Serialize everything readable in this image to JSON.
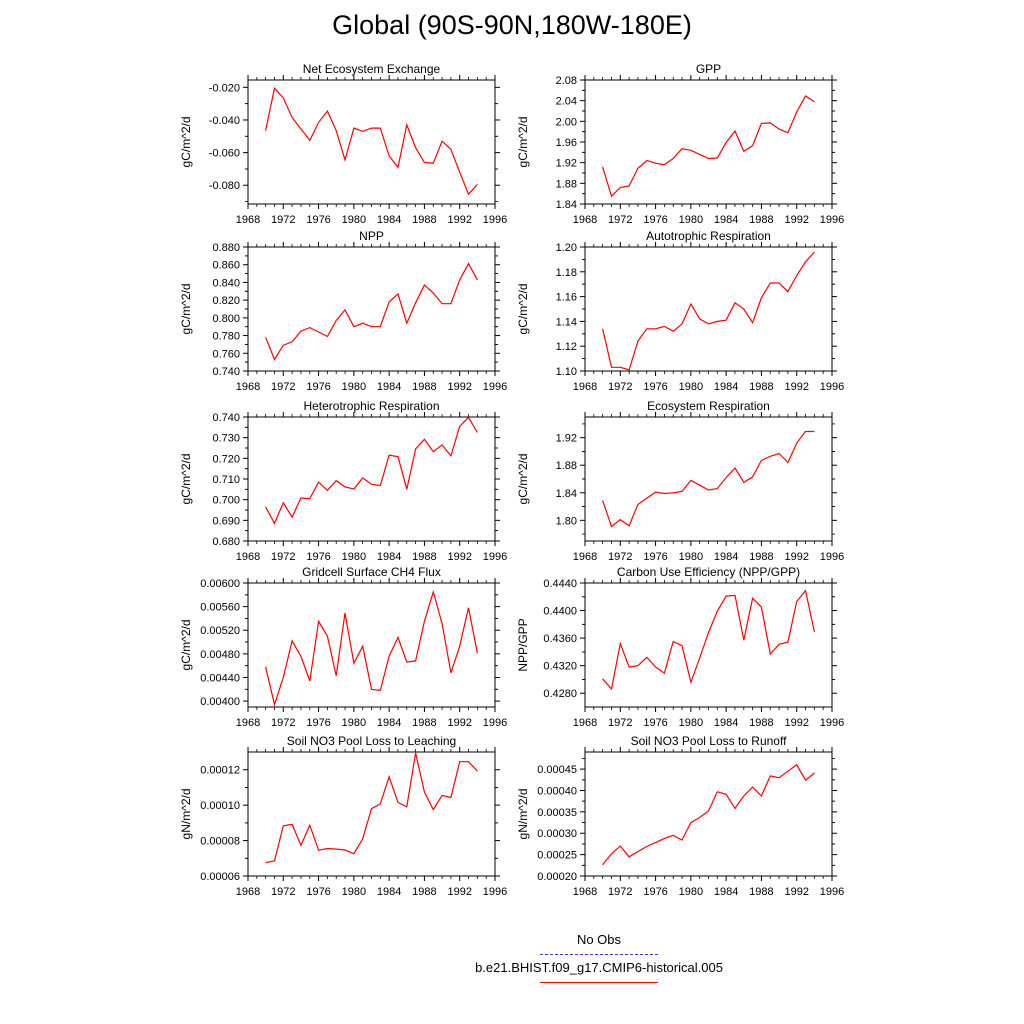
{
  "title": "Global (90S-90N,180W-180E)",
  "colors": {
    "model": "#ff0000",
    "obs": "#3b3bcf",
    "axis": "#000000"
  },
  "legend": {
    "obs_label": "No Obs",
    "model_label": "b.e21.BHIST.f09_g17.CMIP6-historical.005"
  },
  "chart_data": [
    {
      "type": "line",
      "title": "Net Ecosystem Exchange",
      "ylabel": "gC/m^2/d",
      "xlim": [
        1968,
        1996
      ],
      "xticks": [
        "1968",
        "1972",
        "1976",
        "1980",
        "1984",
        "1988",
        "1992",
        "1996"
      ],
      "ylim": [
        -0.0915,
        -0.0155
      ],
      "yticks": [
        {
          "v": -0.02,
          "label": "-0.020"
        },
        {
          "v": -0.04,
          "label": "-0.040"
        },
        {
          "v": -0.06,
          "label": "-0.060"
        },
        {
          "v": -0.08,
          "label": "-0.080"
        }
      ],
      "x": [
        1970,
        1971,
        1972,
        1973,
        1974,
        1975,
        1976,
        1977,
        1978,
        1979,
        1980,
        1981,
        1982,
        1983,
        1984,
        1985,
        1986,
        1987,
        1988,
        1989,
        1990,
        1991,
        1992,
        1993,
        1994
      ],
      "values": [
        -0.0465,
        -0.0205,
        -0.0265,
        -0.0385,
        -0.0455,
        -0.0525,
        -0.0415,
        -0.0345,
        -0.0465,
        -0.0645,
        -0.045,
        -0.047,
        -0.045,
        -0.045,
        -0.062,
        -0.069,
        -0.043,
        -0.057,
        -0.066,
        -0.0665,
        -0.053,
        -0.058,
        -0.072,
        -0.0855,
        -0.0795
      ]
    },
    {
      "type": "line",
      "title": "GPP",
      "ylabel": "gC/m^2/d",
      "xlim": [
        1968,
        1996
      ],
      "xticks": [
        "1968",
        "1972",
        "1976",
        "1980",
        "1984",
        "1988",
        "1992",
        "1996"
      ],
      "ylim": [
        1.84,
        2.08
      ],
      "yticks": [
        {
          "v": 1.84,
          "label": "1.84"
        },
        {
          "v": 1.88,
          "label": "1.88"
        },
        {
          "v": 1.92,
          "label": "1.92"
        },
        {
          "v": 1.96,
          "label": "1.96"
        },
        {
          "v": 2.0,
          "label": "2.00"
        },
        {
          "v": 2.04,
          "label": "2.04"
        },
        {
          "v": 2.08,
          "label": "2.08"
        }
      ],
      "x": [
        1970,
        1971,
        1972,
        1973,
        1974,
        1975,
        1976,
        1977,
        1978,
        1979,
        1980,
        1981,
        1982,
        1983,
        1984,
        1985,
        1986,
        1987,
        1988,
        1989,
        1990,
        1991,
        1992,
        1993,
        1994
      ],
      "values": [
        1.912,
        1.855,
        1.872,
        1.875,
        1.909,
        1.924,
        1.919,
        1.916,
        1.928,
        1.947,
        1.944,
        1.936,
        1.928,
        1.929,
        1.959,
        1.981,
        1.942,
        1.953,
        1.996,
        1.997,
        1.985,
        1.978,
        2.018,
        2.049,
        2.038
      ]
    },
    {
      "type": "line",
      "title": "NPP",
      "ylabel": "gC/m^2/d",
      "xlim": [
        1968,
        1996
      ],
      "xticks": [
        "1968",
        "1972",
        "1976",
        "1980",
        "1984",
        "1988",
        "1992",
        "1996"
      ],
      "ylim": [
        0.74,
        0.88
      ],
      "yticks": [
        {
          "v": 0.74,
          "label": "0.740"
        },
        {
          "v": 0.76,
          "label": "0.760"
        },
        {
          "v": 0.78,
          "label": "0.780"
        },
        {
          "v": 0.8,
          "label": "0.800"
        },
        {
          "v": 0.82,
          "label": "0.820"
        },
        {
          "v": 0.84,
          "label": "0.840"
        },
        {
          "v": 0.86,
          "label": "0.860"
        },
        {
          "v": 0.88,
          "label": "0.880"
        }
      ],
      "x": [
        1970,
        1971,
        1972,
        1973,
        1974,
        1975,
        1976,
        1977,
        1978,
        1979,
        1980,
        1981,
        1982,
        1983,
        1984,
        1985,
        1986,
        1987,
        1988,
        1989,
        1990,
        1991,
        1992,
        1993,
        1994
      ],
      "values": [
        0.778,
        0.753,
        0.769,
        0.773,
        0.785,
        0.789,
        0.784,
        0.779,
        0.797,
        0.809,
        0.79,
        0.794,
        0.79,
        0.79,
        0.818,
        0.827,
        0.794,
        0.817,
        0.837,
        0.828,
        0.816,
        0.816,
        0.843,
        0.861,
        0.843
      ]
    },
    {
      "type": "line",
      "title": "Autotrophic Respiration",
      "ylabel": "gC/m^2/d",
      "xlim": [
        1968,
        1996
      ],
      "xticks": [
        "1968",
        "1972",
        "1976",
        "1980",
        "1984",
        "1988",
        "1992",
        "1996"
      ],
      "ylim": [
        1.1,
        1.2
      ],
      "yticks": [
        {
          "v": 1.1,
          "label": "1.10"
        },
        {
          "v": 1.12,
          "label": "1.12"
        },
        {
          "v": 1.14,
          "label": "1.14"
        },
        {
          "v": 1.16,
          "label": "1.16"
        },
        {
          "v": 1.18,
          "label": "1.18"
        },
        {
          "v": 1.2,
          "label": "1.20"
        }
      ],
      "x": [
        1970,
        1971,
        1972,
        1973,
        1974,
        1975,
        1976,
        1977,
        1978,
        1979,
        1980,
        1981,
        1982,
        1983,
        1984,
        1985,
        1986,
        1987,
        1988,
        1989,
        1990,
        1991,
        1992,
        1993,
        1994
      ],
      "values": [
        1.134,
        1.103,
        1.103,
        1.101,
        1.124,
        1.134,
        1.134,
        1.136,
        1.132,
        1.138,
        1.154,
        1.142,
        1.138,
        1.14,
        1.141,
        1.155,
        1.15,
        1.139,
        1.159,
        1.171,
        1.171,
        1.164,
        1.177,
        1.188,
        1.196
      ]
    },
    {
      "type": "line",
      "title": "Heterotrophic Respiration",
      "ylabel": "gC/m^2/d",
      "xlim": [
        1968,
        1996
      ],
      "xticks": [
        "1968",
        "1972",
        "1976",
        "1980",
        "1984",
        "1988",
        "1992",
        "1996"
      ],
      "ylim": [
        0.68,
        0.74
      ],
      "yticks": [
        {
          "v": 0.68,
          "label": "0.680"
        },
        {
          "v": 0.69,
          "label": "0.690"
        },
        {
          "v": 0.7,
          "label": "0.700"
        },
        {
          "v": 0.71,
          "label": "0.710"
        },
        {
          "v": 0.72,
          "label": "0.720"
        },
        {
          "v": 0.73,
          "label": "0.730"
        },
        {
          "v": 0.74,
          "label": "0.740"
        }
      ],
      "x": [
        1970,
        1971,
        1972,
        1973,
        1974,
        1975,
        1976,
        1977,
        1978,
        1979,
        1980,
        1981,
        1982,
        1983,
        1984,
        1985,
        1986,
        1987,
        1988,
        1989,
        1990,
        1991,
        1992,
        1993,
        1994
      ],
      "values": [
        0.6965,
        0.6885,
        0.6985,
        0.6915,
        0.7008,
        0.7005,
        0.7085,
        0.7045,
        0.7092,
        0.7062,
        0.7052,
        0.7105,
        0.7075,
        0.7068,
        0.7215,
        0.7208,
        0.705,
        0.7245,
        0.7292,
        0.7232,
        0.7265,
        0.7212,
        0.7355,
        0.7398,
        0.7325
      ]
    },
    {
      "type": "line",
      "title": "Ecosystem Respiration",
      "ylabel": "gC/m^2/d",
      "xlim": [
        1968,
        1996
      ],
      "xticks": [
        "1968",
        "1972",
        "1976",
        "1980",
        "1984",
        "1988",
        "1992",
        "1996"
      ],
      "ylim": [
        1.77,
        1.95
      ],
      "yticks": [
        {
          "v": 1.8,
          "label": "1.80"
        },
        {
          "v": 1.84,
          "label": "1.84"
        },
        {
          "v": 1.88,
          "label": "1.88"
        },
        {
          "v": 1.92,
          "label": "1.92"
        }
      ],
      "x": [
        1970,
        1971,
        1972,
        1973,
        1974,
        1975,
        1976,
        1977,
        1978,
        1979,
        1980,
        1981,
        1982,
        1983,
        1984,
        1985,
        1986,
        1987,
        1988,
        1989,
        1990,
        1991,
        1992,
        1993,
        1994
      ],
      "values": [
        1.829,
        1.791,
        1.801,
        1.792,
        1.823,
        1.832,
        1.841,
        1.839,
        1.84,
        1.842,
        1.858,
        1.851,
        1.844,
        1.846,
        1.862,
        1.876,
        1.855,
        1.863,
        1.887,
        1.893,
        1.897,
        1.884,
        1.912,
        1.929,
        1.929
      ]
    },
    {
      "type": "line",
      "title": "Gridcell Surface CH4 Flux",
      "ylabel": "gC/m^2/d",
      "xlim": [
        1968,
        1996
      ],
      "xticks": [
        "1968",
        "1972",
        "1976",
        "1980",
        "1984",
        "1988",
        "1992",
        "1996"
      ],
      "ylim": [
        0.0039,
        0.006
      ],
      "yticks": [
        {
          "v": 0.004,
          "label": "0.00400"
        },
        {
          "v": 0.0044,
          "label": "0.00440"
        },
        {
          "v": 0.0048,
          "label": "0.00480"
        },
        {
          "v": 0.0052,
          "label": "0.00520"
        },
        {
          "v": 0.0056,
          "label": "0.00560"
        },
        {
          "v": 0.006,
          "label": "0.00600"
        }
      ],
      "x": [
        1970,
        1971,
        1972,
        1973,
        1974,
        1975,
        1976,
        1977,
        1978,
        1979,
        1980,
        1981,
        1982,
        1983,
        1984,
        1985,
        1986,
        1987,
        1988,
        1989,
        1990,
        1991,
        1992,
        1993,
        1994
      ],
      "values": [
        0.00458,
        0.00394,
        0.0044,
        0.00502,
        0.00476,
        0.00434,
        0.00535,
        0.0051,
        0.00443,
        0.00549,
        0.00464,
        0.00493,
        0.0042,
        0.00418,
        0.00476,
        0.00508,
        0.00466,
        0.00468,
        0.00535,
        0.00585,
        0.00531,
        0.00448,
        0.00493,
        0.00558,
        0.00481
      ]
    },
    {
      "type": "line",
      "title": "Carbon Use Efficiency (NPP/GPP)",
      "ylabel": "NPP/GPP",
      "xlim": [
        1968,
        1996
      ],
      "xticks": [
        "1968",
        "1972",
        "1976",
        "1980",
        "1984",
        "1988",
        "1992",
        "1996"
      ],
      "ylim": [
        0.426,
        0.444
      ],
      "yticks": [
        {
          "v": 0.428,
          "label": "0.4280"
        },
        {
          "v": 0.432,
          "label": "0.4320"
        },
        {
          "v": 0.436,
          "label": "0.4360"
        },
        {
          "v": 0.44,
          "label": "0.4400"
        },
        {
          "v": 0.444,
          "label": "0.4440"
        }
      ],
      "x": [
        1970,
        1971,
        1972,
        1973,
        1974,
        1975,
        1976,
        1977,
        1978,
        1979,
        1980,
        1981,
        1982,
        1983,
        1984,
        1985,
        1986,
        1987,
        1988,
        1989,
        1990,
        1991,
        1992,
        1993,
        1994
      ],
      "values": [
        0.4301,
        0.4286,
        0.4352,
        0.4318,
        0.432,
        0.4332,
        0.4318,
        0.4309,
        0.4355,
        0.4349,
        0.4296,
        0.4331,
        0.4368,
        0.4399,
        0.4421,
        0.4422,
        0.4357,
        0.4418,
        0.4405,
        0.4337,
        0.4351,
        0.4354,
        0.4413,
        0.4429,
        0.4369
      ]
    },
    {
      "type": "line",
      "title": "Soil NO3 Pool Loss to Leaching",
      "ylabel": "gN/m^2/d",
      "xlim": [
        1968,
        1996
      ],
      "xticks": [
        "1968",
        "1972",
        "1976",
        "1980",
        "1984",
        "1988",
        "1992",
        "1996"
      ],
      "ylim": [
        6e-05,
        0.00013
      ],
      "yticks": [
        {
          "v": 6e-05,
          "label": "0.00006"
        },
        {
          "v": 8e-05,
          "label": "0.00008"
        },
        {
          "v": 0.0001,
          "label": "0.00010"
        },
        {
          "v": 0.00012,
          "label": "0.00012"
        }
      ],
      "x": [
        1970,
        1971,
        1972,
        1973,
        1974,
        1975,
        1976,
        1977,
        1978,
        1979,
        1980,
        1981,
        1982,
        1983,
        1984,
        1985,
        1986,
        1987,
        1988,
        1989,
        1990,
        1991,
        1992,
        1993,
        1994
      ],
      "values": [
        6.75e-05,
        6.85e-05,
        8.83e-05,
        8.92e-05,
        7.73e-05,
        8.87e-05,
        7.45e-05,
        7.55e-05,
        7.52e-05,
        7.47e-05,
        7.26e-05,
        8.1e-05,
        9.8e-05,
        0.0001007,
        0.000116,
        0.0001015,
        9.9e-05,
        0.0001295,
        0.0001075,
        9.75e-05,
        0.0001055,
        0.0001043,
        0.0001245,
        0.0001245,
        0.0001192
      ]
    },
    {
      "type": "line",
      "title": "Soil NO3 Pool Loss to Runoff",
      "ylabel": "gN/m^2/d",
      "xlim": [
        1968,
        1996
      ],
      "xticks": [
        "1968",
        "1972",
        "1976",
        "1980",
        "1984",
        "1988",
        "1992",
        "1996"
      ],
      "ylim": [
        0.0002,
        0.00049
      ],
      "yticks": [
        {
          "v": 0.0002,
          "label": "0.00020"
        },
        {
          "v": 0.00025,
          "label": "0.00025"
        },
        {
          "v": 0.0003,
          "label": "0.00030"
        },
        {
          "v": 0.00035,
          "label": "0.00035"
        },
        {
          "v": 0.0004,
          "label": "0.00040"
        },
        {
          "v": 0.00045,
          "label": "0.00045"
        }
      ],
      "x": [
        1970,
        1971,
        1972,
        1973,
        1974,
        1975,
        1976,
        1977,
        1978,
        1979,
        1980,
        1981,
        1982,
        1983,
        1984,
        1985,
        1986,
        1987,
        1988,
        1989,
        1990,
        1991,
        1992,
        1993,
        1994
      ],
      "values": [
        0.000226,
        0.000252,
        0.00027,
        0.000245,
        0.000257,
        0.000269,
        0.000278,
        0.000288,
        0.000295,
        0.000284,
        0.000325,
        0.000337,
        0.000352,
        0.000397,
        0.000391,
        0.000358,
        0.000387,
        0.000408,
        0.000387,
        0.000434,
        0.00043,
        0.000445,
        0.00046,
        0.000424,
        0.000441
      ]
    }
  ]
}
